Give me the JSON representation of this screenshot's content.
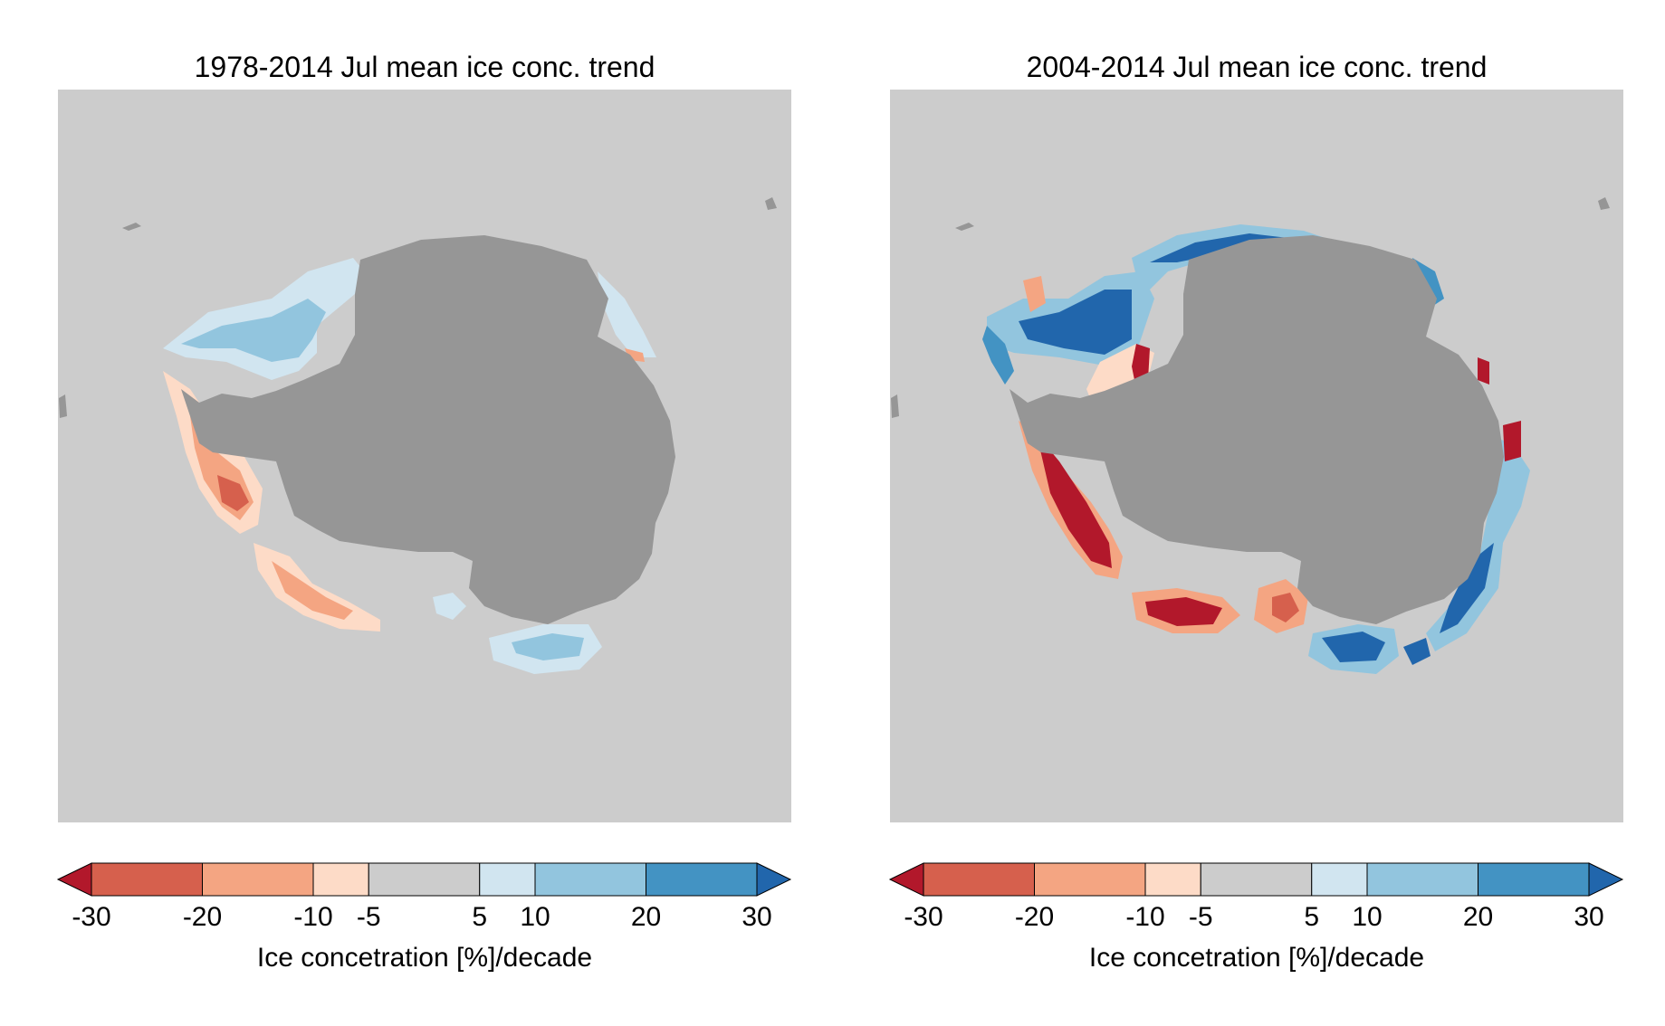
{
  "panels": [
    {
      "title": "1978-2014 Jul mean ice conc. trend",
      "colorbar_label": "Ice concetration [%]/decade"
    },
    {
      "title": "2004-2014 Jul mean ice conc. trend",
      "colorbar_label": "Ice concetration [%]/decade"
    }
  ],
  "colorbar": {
    "ticks": [
      "-30",
      "-20",
      "-10",
      "-5",
      "5",
      "10",
      "20",
      "30"
    ],
    "tick_values": [
      -30,
      -20,
      -10,
      -5,
      5,
      10,
      20,
      30
    ],
    "bins": [
      {
        "from": -30,
        "to": -20,
        "color": "#d6604d"
      },
      {
        "from": -20,
        "to": -10,
        "color": "#f4a582"
      },
      {
        "from": -10,
        "to": -5,
        "color": "#fddbc7"
      },
      {
        "from": -5,
        "to": 5,
        "color": "#cccccc"
      },
      {
        "from": 5,
        "to": 10,
        "color": "#d1e5f0"
      },
      {
        "from": 10,
        "to": 20,
        "color": "#92c5de"
      },
      {
        "from": 20,
        "to": 30,
        "color": "#4393c3"
      }
    ],
    "under_color": "#b2182b",
    "over_color": "#2166ac",
    "extend": "both"
  },
  "colors": {
    "ocean_background": "#cccccc",
    "land": "#969696"
  }
}
